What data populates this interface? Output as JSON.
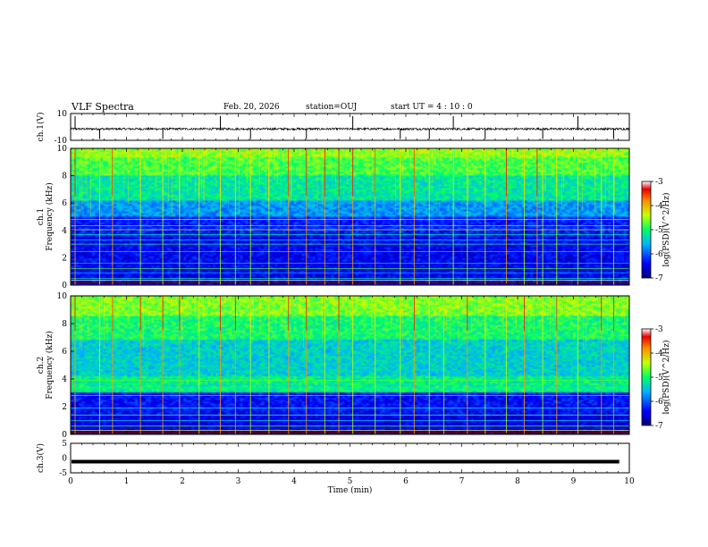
{
  "header": {
    "title": "VLF Spectra",
    "date": "Feb. 20, 2026",
    "station": "station=OUJ",
    "start": "start UT =  4 : 10 : 0"
  },
  "chart_data": [
    {
      "type": "line",
      "panel": "ch1-waveform",
      "ylabel": "ch.1(V)",
      "ylim": [
        -10,
        10
      ],
      "yticks": [
        "10",
        "-10"
      ],
      "xlim": [
        0,
        10
      ],
      "baseline": -1.5,
      "spikes_min": [
        0.08,
        0.52,
        1.65,
        2.68,
        3.22,
        4.22,
        5.05,
        5.9,
        6.42,
        6.85,
        7.42,
        8.45,
        9.08,
        9.72
      ],
      "colors": {
        "line": "#000000"
      }
    },
    {
      "type": "heatmap",
      "panel": "ch1-spectrogram",
      "ylabel": "ch.1",
      "ylabel2": "Frequency (kHz)",
      "ylim": [
        0,
        10
      ],
      "yticks": [
        "0",
        "2",
        "4",
        "6",
        "8",
        "10"
      ],
      "xlim": [
        0,
        10
      ],
      "colorbar": {
        "label": "log(PSD)(V^2/Hz)",
        "ticks": [
          "-3",
          "-4",
          "-5",
          "-6",
          "-7"
        ],
        "range": [
          -7,
          -3
        ]
      },
      "sferics_min": [
        0.08,
        0.52,
        0.75,
        1.25,
        1.65,
        1.95,
        2.3,
        2.68,
        2.95,
        3.22,
        3.55,
        3.9,
        4.22,
        4.55,
        4.8,
        5.05,
        5.45,
        5.9,
        6.15,
        6.42,
        6.85,
        7.1,
        7.42,
        7.8,
        8.12,
        8.35,
        8.45,
        8.7,
        9.08,
        9.5,
        9.72
      ]
    },
    {
      "type": "heatmap",
      "panel": "ch2-spectrogram",
      "ylabel": "ch.2",
      "ylabel2": "Frequency (kHz)",
      "ylim": [
        0,
        10
      ],
      "yticks": [
        "0",
        "2",
        "4",
        "6",
        "8",
        "10"
      ],
      "xlim": [
        0,
        10
      ],
      "colorbar": {
        "label": "log(PSD)(V^2/Hz)",
        "ticks": [
          "-3",
          "-4",
          "-5",
          "-6",
          "-7"
        ],
        "range": [
          -7,
          -3
        ]
      },
      "sferics_min": [
        0.08,
        0.52,
        0.75,
        1.25,
        1.65,
        1.95,
        2.3,
        2.68,
        2.95,
        3.22,
        3.55,
        3.9,
        4.22,
        4.55,
        4.8,
        5.05,
        5.45,
        5.9,
        6.15,
        6.42,
        6.68,
        7.1,
        7.42,
        7.8,
        8.12,
        8.45,
        8.7,
        9.08,
        9.5,
        9.72
      ]
    },
    {
      "type": "line",
      "panel": "ch3-waveform",
      "ylabel": "ch.3(V)",
      "ylim": [
        -5,
        5
      ],
      "yticks": [
        "5",
        "0",
        "-5"
      ],
      "xlim": [
        0,
        10
      ],
      "baseline": -1.2,
      "xlabel": "Time (min)",
      "xticks": [
        "0",
        "1",
        "2",
        "3",
        "4",
        "5",
        "6",
        "7",
        "8",
        "9",
        "10"
      ],
      "colors": {
        "line": "#000000"
      }
    }
  ]
}
